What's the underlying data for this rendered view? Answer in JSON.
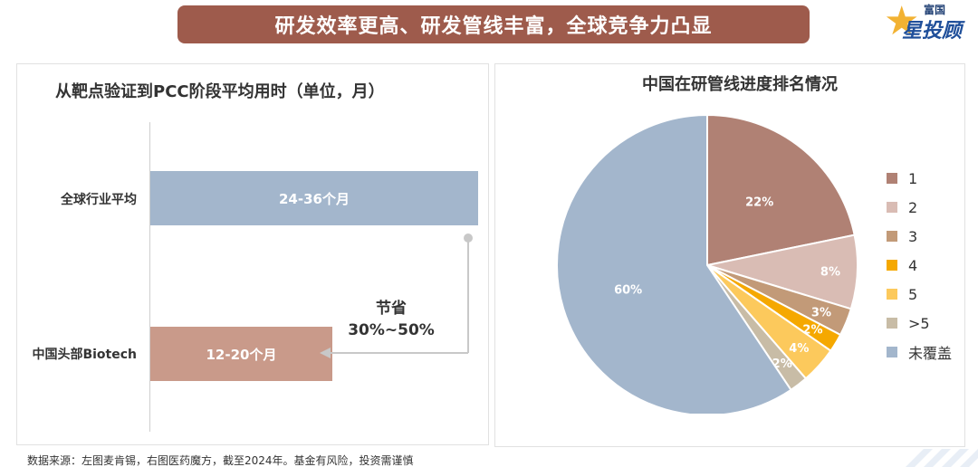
{
  "banner": {
    "title": "研发效率更高、研发管线丰富，全球竞争力凸显"
  },
  "logo": {
    "small_text": "富国",
    "big_text": "星投顾"
  },
  "left_chart": {
    "title": "从靶点验证到PCC阶段平均用时（单位，月）",
    "savings_label_line1": "节省",
    "savings_label_line2": "30%~50%"
  },
  "right_chart": {
    "title": "中国在研管线进度排名情况"
  },
  "footnote": "数据来源：左图麦肯锡，右图医药魔方，截至2024年。基金有风险，投资需谨慎",
  "colors": {
    "banner": "#9e5b4c",
    "bar_global": "#a3b6cc",
    "bar_china": "#c99a8a"
  },
  "chart_data": [
    {
      "type": "bar",
      "title": "从靶点验证到PCC阶段平均用时（单位，月）",
      "orientation": "horizontal",
      "categories": [
        "全球行业平均",
        "中国头部Biotech"
      ],
      "values": [
        [
          24,
          36
        ],
        [
          12,
          20
        ]
      ],
      "data_labels": [
        "24-36个月",
        "12-20个月"
      ],
      "annotation": "节省 30%~50%",
      "xlabel": "",
      "ylabel": ""
    },
    {
      "type": "pie",
      "title": "中国在研管线进度排名情况",
      "labels": [
        "1",
        "2",
        "3",
        "4",
        "5",
        ">5",
        "未覆盖"
      ],
      "values": [
        22,
        8,
        3,
        2,
        4,
        2,
        60
      ],
      "data_labels": [
        "22%",
        "8%",
        "3%",
        "2%",
        "4%",
        "2%",
        "60%"
      ],
      "colors": [
        "#b08174",
        "#d9bcb4",
        "#c29a78",
        "#f5a800",
        "#fcc95c",
        "#c8bca6",
        "#a3b6cc"
      ],
      "legend_position": "right"
    }
  ]
}
